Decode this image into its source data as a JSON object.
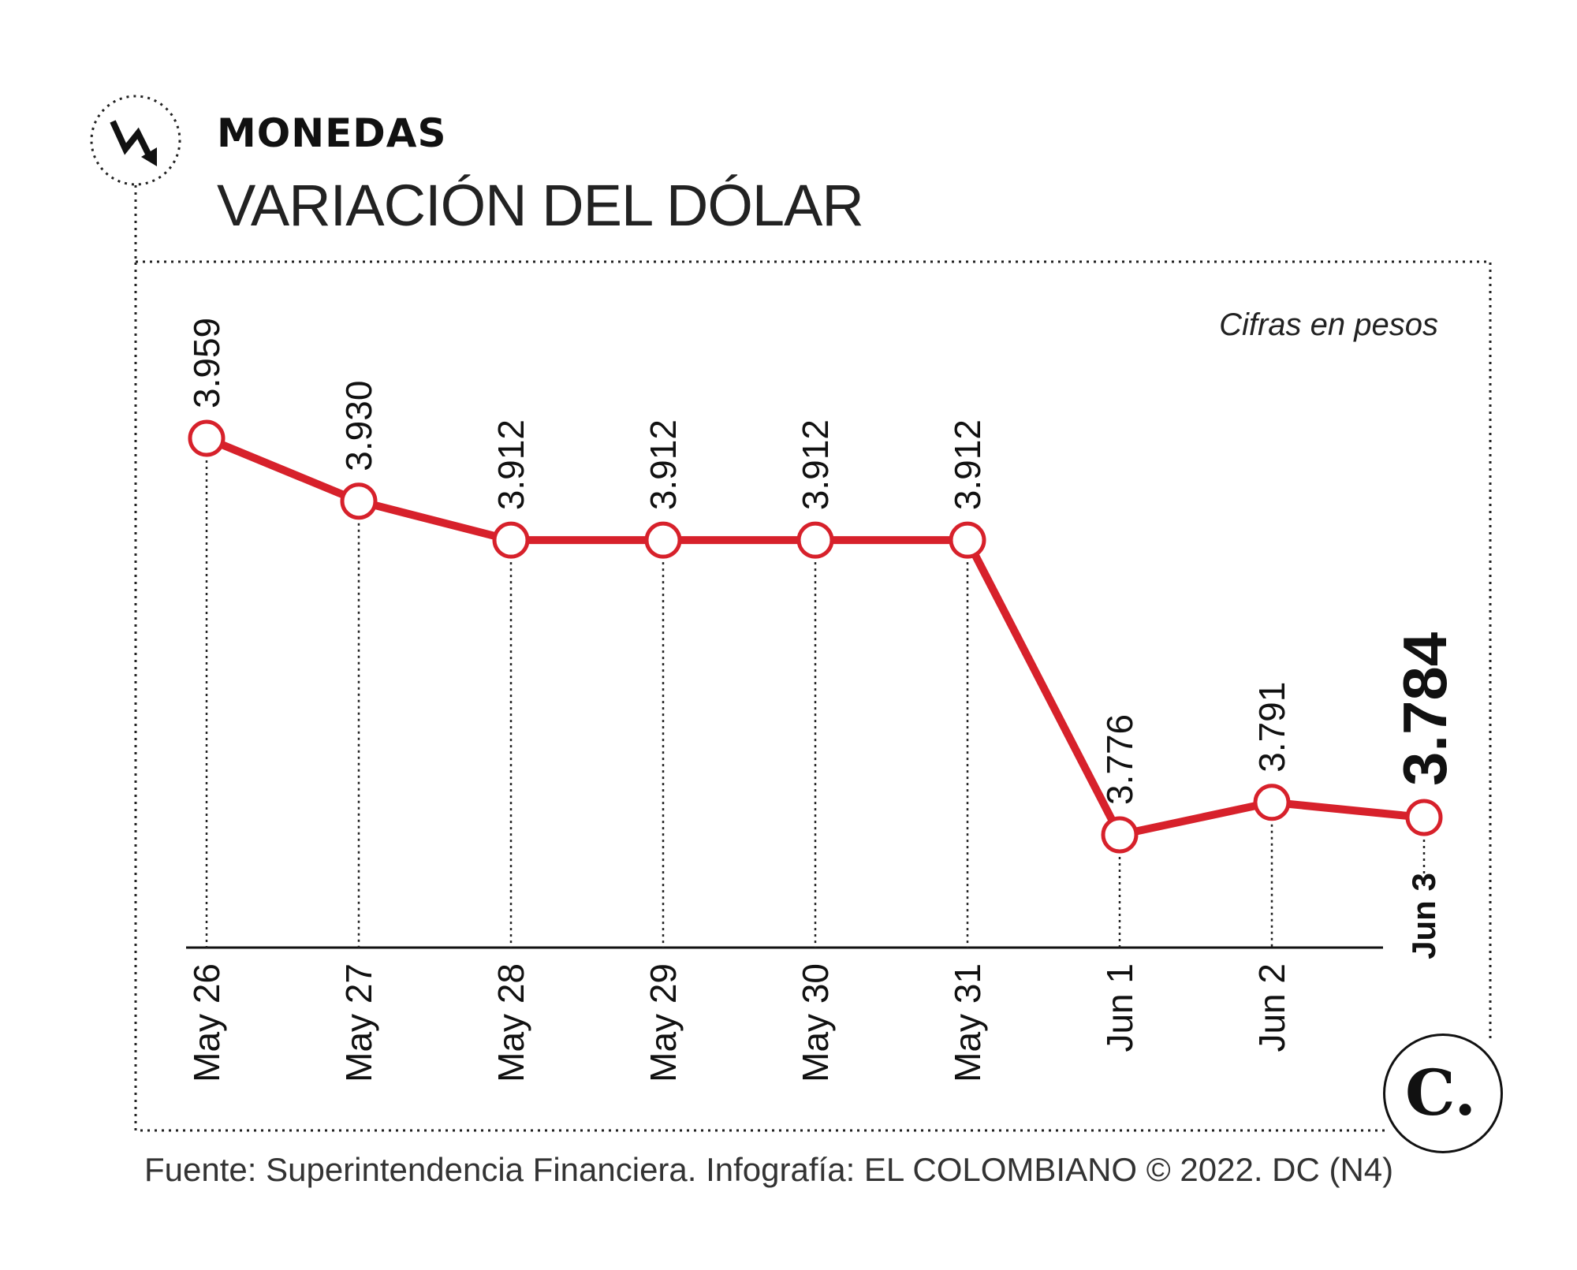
{
  "header": {
    "section": "MONEDAS",
    "title": "VARIACIÓN DEL DÓLAR"
  },
  "note": "Cifras en pesos",
  "source": "Fuente: Superintendencia Financiera. Infografía: EL COLOMBIANO © 2022. DC (N4)",
  "icons": {
    "header": "trend-down-arrow-icon",
    "logo": "el-colombiano-logo-icon"
  },
  "logo_text": "C.",
  "colors": {
    "line": "#d7212b",
    "text": "#111111",
    "border": "#222222"
  },
  "chart_data": {
    "type": "line",
    "title": "VARIACIÓN DEL DÓLAR",
    "categories": [
      "May 26",
      "May 27",
      "May 28",
      "May 29",
      "May 30",
      "May 31",
      "Jun 1",
      "Jun 2",
      "Jun 3"
    ],
    "values": [
      3959,
      3930,
      3912,
      3912,
      3912,
      3912,
      3776,
      3791,
      3784
    ],
    "labels": [
      "3.959",
      "3.930",
      "3.912",
      "3.912",
      "3.912",
      "3.912",
      "3.776",
      "3.791",
      "3.784"
    ],
    "highlight_index": 8,
    "ylim": [
      3776,
      3959
    ],
    "grid": false,
    "legend": "none"
  }
}
